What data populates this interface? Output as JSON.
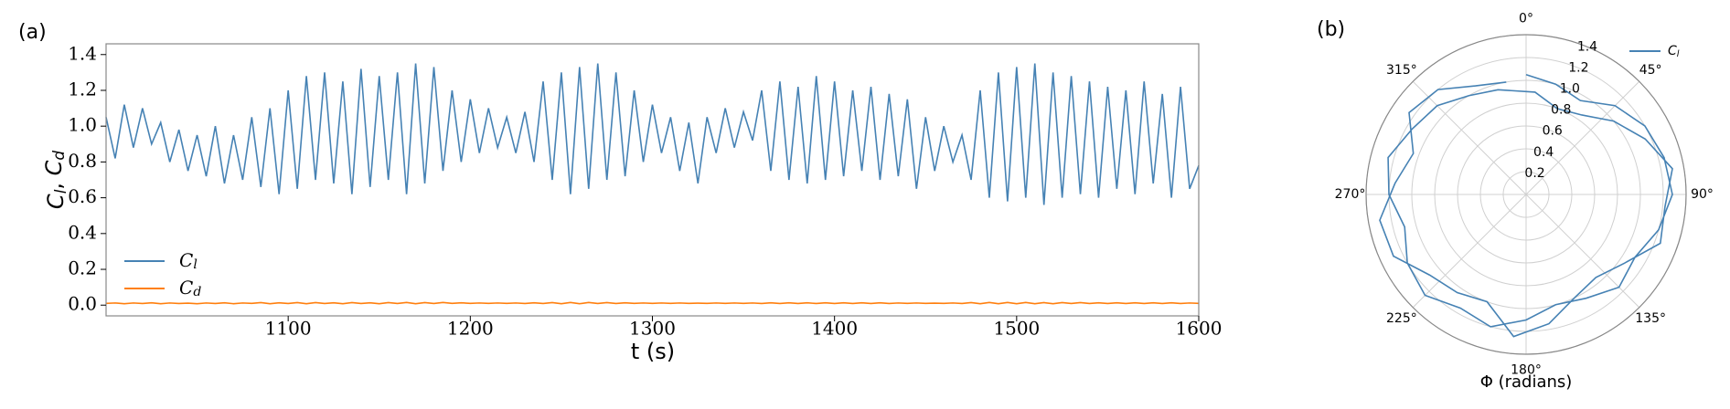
{
  "chart_data": [
    {
      "type": "line",
      "panel_label": "(a)",
      "xlabel": "t (s)",
      "ylabel": "Cl, Cd",
      "x": [
        1000,
        1005,
        1010,
        1015,
        1020,
        1025,
        1030,
        1035,
        1040,
        1045,
        1050,
        1055,
        1060,
        1065,
        1070,
        1075,
        1080,
        1085,
        1090,
        1095,
        1100,
        1105,
        1110,
        1115,
        1120,
        1125,
        1130,
        1135,
        1140,
        1145,
        1150,
        1155,
        1160,
        1165,
        1170,
        1175,
        1180,
        1185,
        1190,
        1195,
        1200,
        1205,
        1210,
        1215,
        1220,
        1225,
        1230,
        1235,
        1240,
        1245,
        1250,
        1255,
        1260,
        1265,
        1270,
        1275,
        1280,
        1285,
        1290,
        1295,
        1300,
        1305,
        1310,
        1315,
        1320,
        1325,
        1330,
        1335,
        1340,
        1345,
        1350,
        1355,
        1360,
        1365,
        1370,
        1375,
        1380,
        1385,
        1390,
        1395,
        1400,
        1405,
        1410,
        1415,
        1420,
        1425,
        1430,
        1435,
        1440,
        1445,
        1450,
        1455,
        1460,
        1465,
        1470,
        1475,
        1480,
        1485,
        1490,
        1495,
        1500,
        1505,
        1510,
        1515,
        1520,
        1525,
        1530,
        1535,
        1540,
        1545,
        1550,
        1555,
        1560,
        1565,
        1570,
        1575,
        1580,
        1585,
        1590,
        1595,
        1600
      ],
      "series": [
        {
          "name": "Cl",
          "color": "#4682b4",
          "values": [
            1.05,
            0.82,
            1.12,
            0.88,
            1.1,
            0.9,
            1.02,
            0.8,
            0.98,
            0.75,
            0.95,
            0.72,
            1.0,
            0.68,
            0.95,
            0.7,
            1.05,
            0.66,
            1.1,
            0.62,
            1.2,
            0.65,
            1.28,
            0.7,
            1.3,
            0.68,
            1.25,
            0.62,
            1.32,
            0.66,
            1.28,
            0.7,
            1.3,
            0.62,
            1.35,
            0.68,
            1.33,
            0.75,
            1.2,
            0.8,
            1.15,
            0.85,
            1.1,
            0.88,
            1.05,
            0.85,
            1.08,
            0.8,
            1.25,
            0.7,
            1.3,
            0.62,
            1.33,
            0.65,
            1.35,
            0.7,
            1.3,
            0.72,
            1.2,
            0.8,
            1.12,
            0.85,
            1.05,
            0.75,
            1.02,
            0.68,
            1.05,
            0.85,
            1.1,
            0.88,
            1.08,
            0.92,
            1.2,
            0.75,
            1.25,
            0.7,
            1.22,
            0.68,
            1.28,
            0.7,
            1.25,
            0.72,
            1.2,
            0.75,
            1.22,
            0.7,
            1.18,
            0.72,
            1.15,
            0.65,
            1.05,
            0.75,
            1.0,
            0.8,
            0.95,
            0.7,
            1.2,
            0.6,
            1.3,
            0.58,
            1.33,
            0.6,
            1.35,
            0.56,
            1.3,
            0.6,
            1.28,
            0.62,
            1.25,
            0.6,
            1.22,
            0.65,
            1.2,
            0.62,
            1.25,
            0.68,
            1.18,
            0.6,
            1.22,
            0.65,
            0.78
          ]
        },
        {
          "name": "Cd",
          "color": "#ff7f0e",
          "values": [
            0.01,
            0.012,
            0.008,
            0.012,
            0.009,
            0.013,
            0.008,
            0.012,
            0.009,
            0.011,
            0.008,
            0.012,
            0.009,
            0.013,
            0.008,
            0.012,
            0.01,
            0.014,
            0.008,
            0.013,
            0.009,
            0.014,
            0.008,
            0.014,
            0.009,
            0.013,
            0.008,
            0.014,
            0.009,
            0.013,
            0.008,
            0.014,
            0.009,
            0.015,
            0.008,
            0.014,
            0.009,
            0.015,
            0.01,
            0.013,
            0.01,
            0.012,
            0.01,
            0.012,
            0.01,
            0.012,
            0.009,
            0.013,
            0.009,
            0.014,
            0.008,
            0.015,
            0.008,
            0.015,
            0.009,
            0.014,
            0.009,
            0.013,
            0.01,
            0.012,
            0.01,
            0.012,
            0.01,
            0.012,
            0.01,
            0.011,
            0.01,
            0.012,
            0.01,
            0.012,
            0.01,
            0.012,
            0.009,
            0.013,
            0.009,
            0.013,
            0.009,
            0.013,
            0.009,
            0.013,
            0.009,
            0.013,
            0.009,
            0.013,
            0.009,
            0.013,
            0.009,
            0.012,
            0.01,
            0.012,
            0.01,
            0.011,
            0.01,
            0.012,
            0.009,
            0.014,
            0.008,
            0.015,
            0.008,
            0.015,
            0.008,
            0.015,
            0.008,
            0.014,
            0.008,
            0.014,
            0.009,
            0.014,
            0.009,
            0.013,
            0.009,
            0.013,
            0.009,
            0.013,
            0.009,
            0.013,
            0.009,
            0.013,
            0.009,
            0.012,
            0.01
          ]
        }
      ],
      "xlim": [
        1000,
        1600
      ],
      "ylim": [
        -0.06,
        1.46
      ],
      "xticks": [
        1100,
        1200,
        1300,
        1400,
        1500,
        1600
      ],
      "yticks": [
        {
          "value": 0,
          "label": "0.0"
        },
        0.2,
        0.4,
        0.6,
        0.8,
        {
          "value": 1,
          "label": "1.0"
        },
        1.2,
        1.4
      ],
      "legend": "lower left"
    },
    {
      "type": "polar",
      "panel_label": "(b)",
      "xlabel": "Φ (radians)",
      "theta": [
        0,
        15,
        30,
        45,
        60,
        75,
        90,
        105,
        120,
        135,
        150,
        165,
        180,
        195,
        210,
        225,
        240,
        255,
        270,
        285,
        300,
        315,
        330,
        345,
        5,
        20,
        35,
        50,
        65,
        80,
        95,
        110,
        125,
        140,
        155,
        170,
        185,
        200,
        215,
        230,
        245,
        260,
        275,
        290,
        305,
        320,
        335,
        350
      ],
      "series": [
        {
          "name": "Cl",
          "color": "#4682b4",
          "values": [
            1.05,
            1.0,
            0.95,
            1.1,
            1.2,
            1.25,
            1.28,
            1.2,
            1.1,
            1.15,
            1.05,
            1.0,
            1.1,
            1.2,
            1.15,
            1.25,
            1.2,
            1.1,
            1.2,
            1.25,
            1.15,
            1.1,
            1.0,
            0.95,
            0.9,
            0.8,
            0.85,
            1.0,
            1.15,
            1.3,
            1.22,
            1.25,
            1.05,
            0.95,
            1.0,
            1.15,
            1.25,
            1.0,
            1.05,
            1.1,
            1.28,
            1.3,
            1.15,
            1.05,
            1.25,
            1.2,
            1.05,
            1.0
          ]
        }
      ],
      "thetaticks": [
        {
          "value": 0,
          "label": "0°"
        },
        {
          "value": 45,
          "label": "45°"
        },
        {
          "value": 90,
          "label": "90°"
        },
        {
          "value": 135,
          "label": "135°"
        },
        {
          "value": 180,
          "label": "180°"
        },
        {
          "value": 225,
          "label": "225°"
        },
        {
          "value": 270,
          "label": "270°"
        },
        {
          "value": 315,
          "label": "315°"
        }
      ],
      "rlim": [
        0,
        1.4
      ],
      "rticks": [
        0.2,
        0.4,
        0.6,
        0.8,
        {
          "value": 1,
          "label": "1.0"
        },
        1.2,
        1.4
      ],
      "direction": "clockwise",
      "zero": "top",
      "grid": true,
      "legend": "upper right"
    }
  ]
}
